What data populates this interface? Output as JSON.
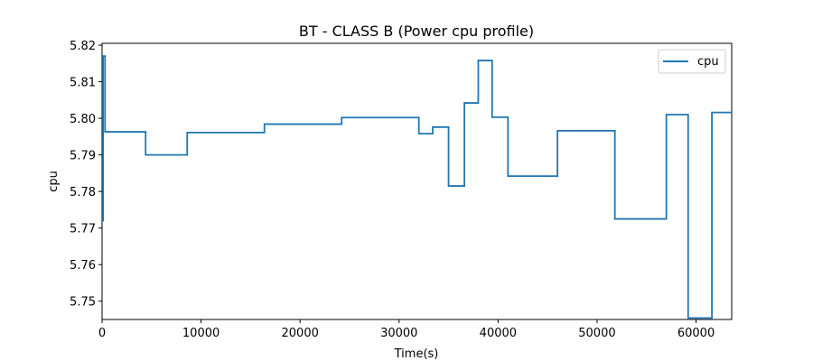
{
  "chart_data": {
    "type": "line",
    "title": "BT - CLASS B (Power cpu profile)",
    "xlabel": "Time(s)",
    "ylabel": "cpu",
    "xlim": [
      0,
      63600
    ],
    "ylim": [
      5.745,
      5.8205
    ],
    "x_ticks": [
      0,
      10000,
      20000,
      30000,
      40000,
      50000,
      60000
    ],
    "x_tick_labels": [
      "0",
      "10000",
      "20000",
      "30000",
      "40000",
      "50000",
      "60000"
    ],
    "y_ticks": [
      5.75,
      5.76,
      5.77,
      5.78,
      5.79,
      5.8,
      5.81,
      5.82
    ],
    "y_tick_labels": [
      "5.75",
      "5.76",
      "5.77",
      "5.78",
      "5.79",
      "5.80",
      "5.81",
      "5.82"
    ],
    "grid": false,
    "legend_position": "top-right",
    "series": [
      {
        "name": "cpu",
        "color": "#1f77b4",
        "step": true,
        "points": [
          [
            0,
            5.772
          ],
          [
            100,
            5.817
          ],
          [
            300,
            5.7963
          ],
          [
            4400,
            5.79
          ],
          [
            8600,
            5.7961
          ],
          [
            16400,
            5.7984
          ],
          [
            24200,
            5.8002
          ],
          [
            32000,
            5.7958
          ],
          [
            33400,
            5.7976
          ],
          [
            35000,
            5.7815
          ],
          [
            36600,
            5.8042
          ],
          [
            38000,
            5.8158
          ],
          [
            39400,
            5.8003
          ],
          [
            41000,
            5.7842
          ],
          [
            46000,
            5.7966
          ],
          [
            51800,
            5.7725
          ],
          [
            57000,
            5.801
          ],
          [
            59200,
            5.7454
          ],
          [
            61600,
            5.8016
          ],
          [
            63600,
            5.8016
          ]
        ]
      }
    ]
  }
}
